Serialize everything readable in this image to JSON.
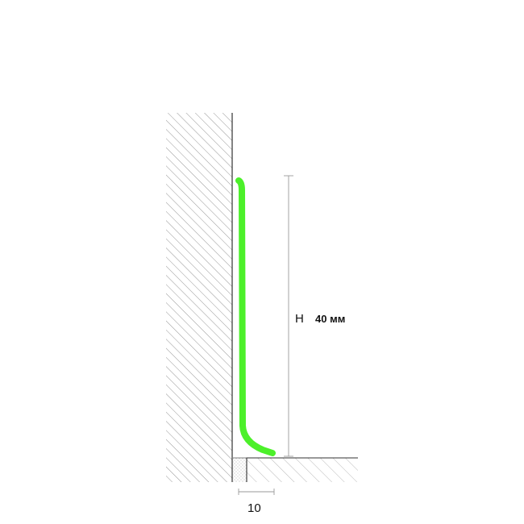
{
  "diagram": {
    "height_symbol": "H",
    "height_value": "40 мм",
    "gap_value": "10",
    "colors": {
      "profile": "#4cf02a",
      "hatch": "#8c8c8c",
      "outline": "#333333",
      "dimension_line": "#9a9a9a"
    }
  }
}
